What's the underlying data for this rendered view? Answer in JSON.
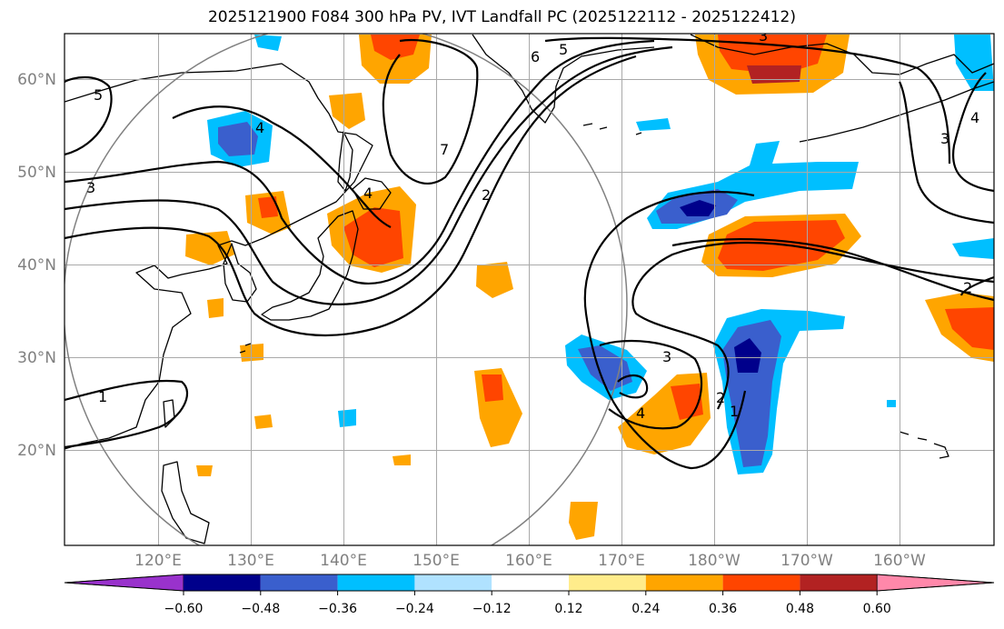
{
  "title": "2025121900 F084 300 hPa PV, IVT Landfall PC (2025122112 - 2025122412)",
  "lon_ticks": [
    "120°E",
    "130°E",
    "140°E",
    "150°E",
    "160°E",
    "170°E",
    "180°W",
    "170°W",
    "160°W"
  ],
  "lat_ticks": [
    "60°N",
    "50°N",
    "40°N",
    "30°N",
    "20°N"
  ],
  "colorbar": {
    "colors": [
      "#9932cc",
      "#00008b",
      "#3a5fcd",
      "#00bfff",
      "#b0e2ff",
      "#ffffff",
      "#ffec8b",
      "#ffa500",
      "#ff4500",
      "#b22222",
      "#ff88aa"
    ],
    "labels": [
      "−0.60",
      "−0.48",
      "−0.36",
      "−0.24",
      "−0.12",
      "0.12",
      "0.24",
      "0.36",
      "0.48",
      "0.60"
    ]
  },
  "contour_labels": [
    "5",
    "4",
    "3",
    "1",
    "6",
    "5",
    "7",
    "2",
    "3",
    "4",
    "3",
    "2",
    "1",
    "4",
    "3",
    "2",
    "4"
  ],
  "contour_values": [
    1,
    2,
    3,
    4,
    5,
    6,
    7
  ]
}
